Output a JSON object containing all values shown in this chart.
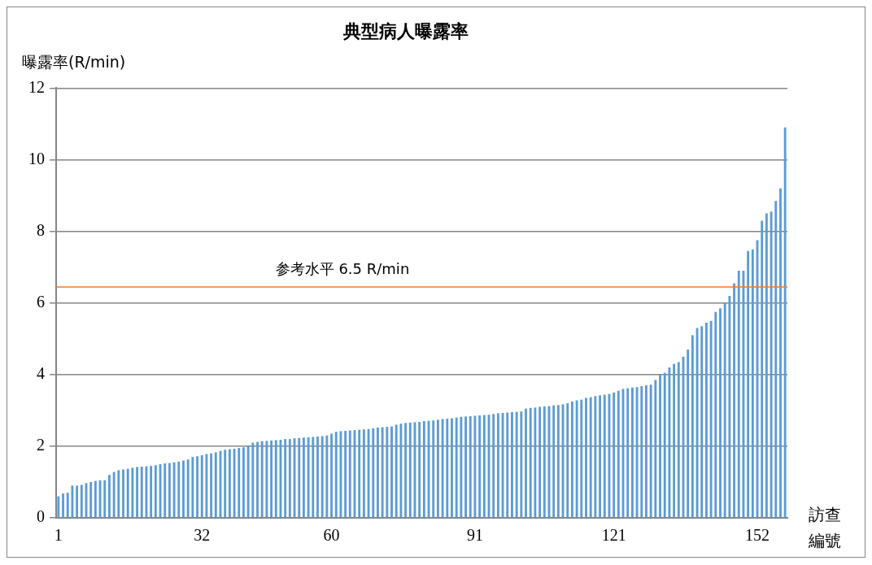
{
  "chart_data": {
    "type": "bar",
    "title": "典型病人曝露率",
    "ylabel": "曝露率(R/min)",
    "xlabel": "訪查編號",
    "categories": [
      "1",
      null,
      null,
      null,
      null,
      null,
      null,
      null,
      null,
      null,
      null,
      null,
      null,
      null,
      null,
      null,
      null,
      null,
      null,
      null,
      null,
      null,
      null,
      null,
      null,
      null,
      null,
      null,
      null,
      null,
      null,
      "32",
      null,
      null,
      null,
      null,
      null,
      null,
      null,
      null,
      null,
      null,
      null,
      null,
      null,
      null,
      null,
      null,
      null,
      null,
      null,
      null,
      null,
      null,
      null,
      null,
      null,
      null,
      null,
      "60",
      null,
      null,
      null,
      null,
      null,
      null,
      null,
      null,
      null,
      null,
      null,
      null,
      null,
      null,
      null,
      null,
      null,
      null,
      null,
      null,
      null,
      null,
      null,
      null,
      null,
      null,
      null,
      null,
      null,
      null,
      "91",
      null,
      null,
      null,
      null,
      null,
      null,
      null,
      null,
      null,
      null,
      null,
      null,
      null,
      null,
      null,
      null,
      null,
      null,
      null,
      null,
      null,
      null,
      null,
      null,
      null,
      null,
      null,
      null,
      null,
      "121",
      null,
      null,
      null,
      null,
      null,
      null,
      null,
      null,
      null,
      null,
      null,
      null,
      null,
      null,
      null,
      null,
      null,
      null,
      null,
      null,
      null,
      null,
      null,
      null,
      null,
      null,
      null,
      null,
      null,
      null,
      "152",
      null,
      null,
      null,
      null,
      null,
      null
    ],
    "values": [
      0.6,
      0.68,
      0.7,
      0.9,
      0.9,
      0.92,
      0.97,
      1.0,
      1.03,
      1.05,
      1.05,
      1.2,
      1.28,
      1.33,
      1.35,
      1.37,
      1.4,
      1.42,
      1.43,
      1.44,
      1.45,
      1.47,
      1.5,
      1.52,
      1.53,
      1.55,
      1.57,
      1.6,
      1.63,
      1.7,
      1.72,
      1.75,
      1.78,
      1.8,
      1.83,
      1.87,
      1.9,
      1.92,
      1.93,
      1.95,
      1.97,
      2.0,
      2.1,
      2.12,
      2.14,
      2.15,
      2.16,
      2.17,
      2.18,
      2.2,
      2.2,
      2.22,
      2.23,
      2.24,
      2.25,
      2.26,
      2.27,
      2.28,
      2.3,
      2.35,
      2.4,
      2.42,
      2.43,
      2.44,
      2.45,
      2.46,
      2.47,
      2.48,
      2.5,
      2.52,
      2.53,
      2.54,
      2.55,
      2.6,
      2.63,
      2.65,
      2.66,
      2.67,
      2.68,
      2.7,
      2.71,
      2.72,
      2.74,
      2.76,
      2.77,
      2.78,
      2.8,
      2.82,
      2.83,
      2.84,
      2.85,
      2.86,
      2.87,
      2.88,
      2.9,
      2.92,
      2.93,
      2.94,
      2.95,
      2.96,
      2.97,
      3.05,
      3.07,
      3.08,
      3.1,
      3.11,
      3.12,
      3.14,
      3.15,
      3.17,
      3.2,
      3.25,
      3.28,
      3.3,
      3.35,
      3.37,
      3.4,
      3.42,
      3.44,
      3.46,
      3.5,
      3.55,
      3.6,
      3.62,
      3.64,
      3.65,
      3.68,
      3.7,
      3.72,
      3.85,
      4.0,
      4.05,
      4.2,
      4.3,
      4.35,
      4.5,
      4.7,
      5.1,
      5.3,
      5.35,
      5.45,
      5.5,
      5.75,
      5.85,
      6.0,
      6.2,
      6.55,
      6.9,
      6.9,
      7.45,
      7.5,
      7.75,
      8.3,
      8.5,
      8.55,
      8.85,
      9.2,
      10.9
    ],
    "color": "#5b9bd5",
    "ylim": [
      0,
      12
    ],
    "yticks": [
      0,
      2,
      4,
      6,
      8,
      10,
      12
    ],
    "grid": "y",
    "legend": false,
    "ref_lines": [
      {
        "axis": "y",
        "value": 6.45,
        "label": "参考水平 6.5 R/min",
        "color": "#ed7d31"
      }
    ]
  }
}
